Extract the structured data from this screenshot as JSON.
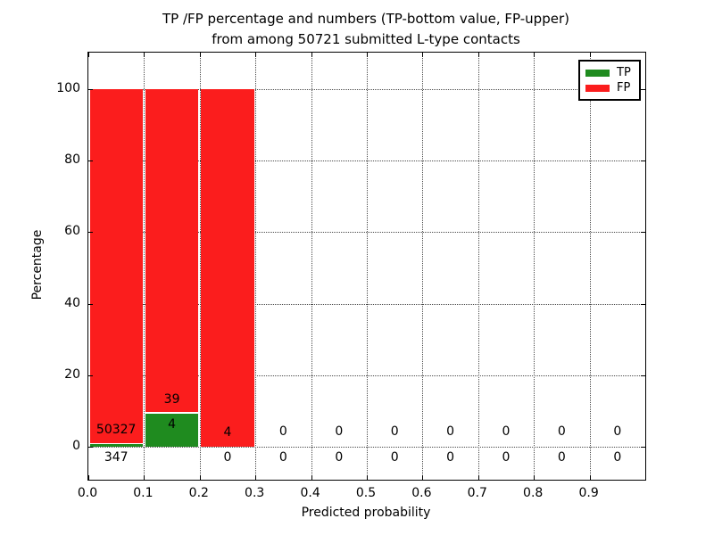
{
  "title_line1": "TP /FP percentage and numbers (TP-bottom value, FP-upper)",
  "title_line2": "from among 50721 submitted L-type contacts",
  "chart_data": {
    "type": "bar",
    "stacked": true,
    "title": "TP /FP percentage and numbers (TP-bottom value, FP-upper) from among 50721 submitted L-type contacts",
    "xlabel": "Predicted probability",
    "ylabel": "Percentage",
    "xlim": [
      0.0,
      1.0
    ],
    "ylim": [
      -10,
      110
    ],
    "grid": "dotted",
    "legend_position": "upper right",
    "x_tick_labels": [
      "0.0",
      "0.1",
      "0.2",
      "0.3",
      "0.4",
      "0.5",
      "0.6",
      "0.7",
      "0.8",
      "0.9"
    ],
    "y_ticks": [
      0,
      20,
      40,
      60,
      80,
      100
    ],
    "legend": [
      {
        "label": "TP",
        "color": "#1f8b1f"
      },
      {
        "label": "FP",
        "color": "#fb1d1d"
      }
    ],
    "colors": {
      "tp": "#1f8b1f",
      "fp": "#fb1d1d",
      "grid": "#4b4b4b",
      "frame": "#000000"
    },
    "bins": [
      {
        "range": [
          0.0,
          0.1
        ],
        "tp": 347,
        "fp": 50327,
        "tp_pct": 0.68,
        "fp_pct": 99.32,
        "fp_label_y": 4.7,
        "tp_label_y": -3.0
      },
      {
        "range": [
          0.1,
          0.2
        ],
        "tp": 4,
        "fp": 39,
        "tp_pct": 9.3,
        "fp_pct": 90.7,
        "fp_label_y": 13.2,
        "tp_label_y": 6.2
      },
      {
        "range": [
          0.2,
          0.3
        ],
        "tp": 0,
        "fp": 4,
        "tp_pct": 0,
        "fp_pct": 100,
        "fp_label_y": 3.9,
        "tp_label_y": -3.0
      },
      {
        "range": [
          0.3,
          0.4
        ],
        "tp": 0,
        "fp": 0,
        "tp_pct": 0,
        "fp_pct": 0,
        "fp_label_y": 4.2,
        "tp_label_y": -3.0
      },
      {
        "range": [
          0.4,
          0.5
        ],
        "tp": 0,
        "fp": 0,
        "tp_pct": 0,
        "fp_pct": 0,
        "fp_label_y": 4.2,
        "tp_label_y": -3.0
      },
      {
        "range": [
          0.5,
          0.6
        ],
        "tp": 0,
        "fp": 0,
        "tp_pct": 0,
        "fp_pct": 0,
        "fp_label_y": 4.2,
        "tp_label_y": -3.0
      },
      {
        "range": [
          0.6,
          0.7
        ],
        "tp": 0,
        "fp": 0,
        "tp_pct": 0,
        "fp_pct": 0,
        "fp_label_y": 4.2,
        "tp_label_y": -3.0
      },
      {
        "range": [
          0.7,
          0.8
        ],
        "tp": 0,
        "fp": 0,
        "tp_pct": 0,
        "fp_pct": 0,
        "fp_label_y": 4.2,
        "tp_label_y": -3.0
      },
      {
        "range": [
          0.8,
          0.9
        ],
        "tp": 0,
        "fp": 0,
        "tp_pct": 0,
        "fp_pct": 0,
        "fp_label_y": 4.2,
        "tp_label_y": -3.0
      },
      {
        "range": [
          0.9,
          1.0
        ],
        "tp": 0,
        "fp": 0,
        "tp_pct": 0,
        "fp_pct": 0,
        "fp_label_y": 4.2,
        "tp_label_y": -3.0
      }
    ]
  }
}
